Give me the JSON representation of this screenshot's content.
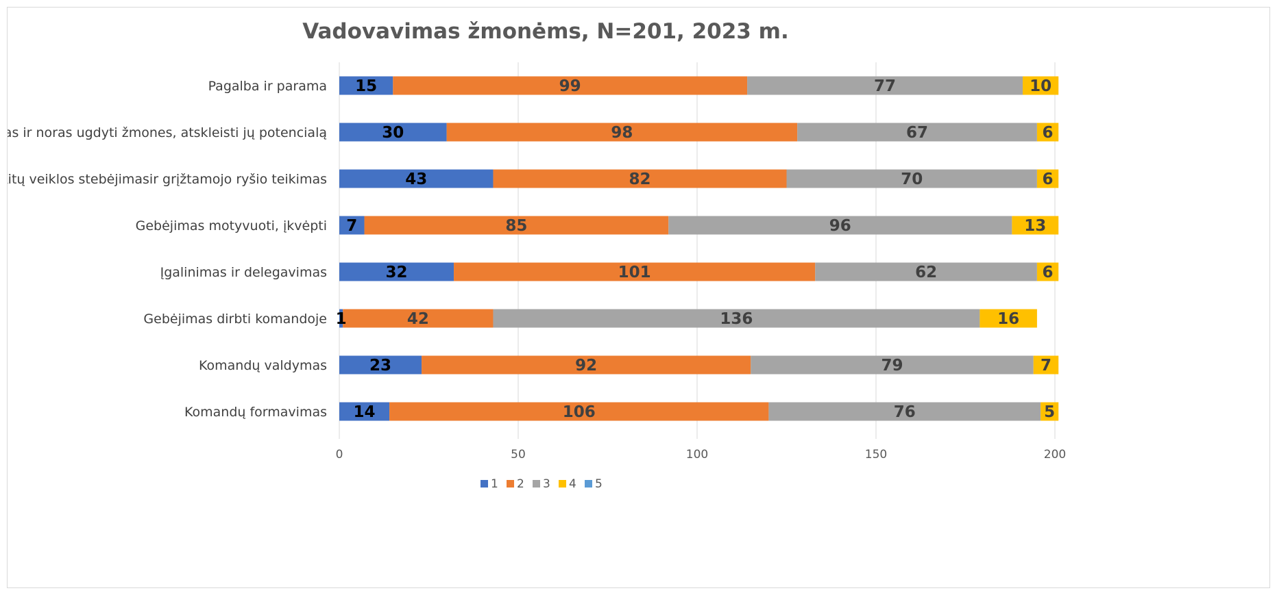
{
  "chart_data": {
    "type": "bar",
    "orientation": "horizontal",
    "stacked": true,
    "title": "Vadovavimas žmonėms, N=201, 2023 m.",
    "categories": [
      "Pagalba ir parama",
      "Gebėjimas ir noras ugdyti žmones, atskleisti jų potencialą",
      "Kitų veiklos stebėjimasir grįžtamojo ryšio teikimas",
      "Gebėjimas motyvuoti, įkvėpti",
      "Įgalinimas ir delegavimas",
      "Gebėjimas dirbti komandoje",
      "Komandų valdymas",
      "Komandų formavimas"
    ],
    "series": [
      {
        "name": "1",
        "color": "#4472c4",
        "label_color": "#000000",
        "values": [
          15,
          30,
          43,
          7,
          32,
          1,
          23,
          14
        ]
      },
      {
        "name": "2",
        "color": "#ed7d31",
        "label_color": "#404040",
        "values": [
          99,
          98,
          82,
          85,
          101,
          42,
          92,
          106
        ]
      },
      {
        "name": "3",
        "color": "#a5a5a5",
        "label_color": "#404040",
        "values": [
          77,
          67,
          70,
          96,
          62,
          136,
          79,
          76
        ]
      },
      {
        "name": "4",
        "color": "#ffc000",
        "label_color": "#404040",
        "values": [
          10,
          6,
          6,
          13,
          6,
          16,
          7,
          5
        ]
      },
      {
        "name": "5",
        "color": "#5b9bd5",
        "label_color": "#404040",
        "values": [
          0,
          0,
          0,
          0,
          0,
          0,
          0,
          0
        ]
      }
    ],
    "xlim": [
      0,
      200
    ],
    "xticks": [
      "0",
      "50",
      "100",
      "150",
      "200"
    ],
    "grid": true,
    "legend_position": "bottom"
  }
}
